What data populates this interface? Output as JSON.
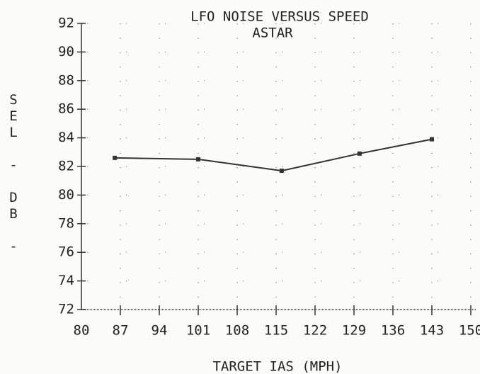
{
  "chart_data": {
    "type": "line",
    "title": "LFO NOISE VERSUS SPEED",
    "subtitle": "ASTAR",
    "x_label": "TARGET IAS (MPH)",
    "y_label": "SEL - DB -",
    "x": [
      86,
      101,
      116,
      130,
      143
    ],
    "series": [
      {
        "name": "ASTAR",
        "color": "#333333",
        "values": [
          82.6,
          82.5,
          81.7,
          82.9,
          83.9
        ]
      }
    ],
    "xlim": [
      80,
      150
    ],
    "xticks": [
      80,
      87,
      94,
      101,
      108,
      115,
      122,
      129,
      136,
      143,
      150
    ],
    "ylim": [
      72,
      92
    ],
    "yticks": [
      72,
      74,
      76,
      78,
      80,
      82,
      84,
      86,
      88,
      90,
      92
    ],
    "grid": true
  }
}
